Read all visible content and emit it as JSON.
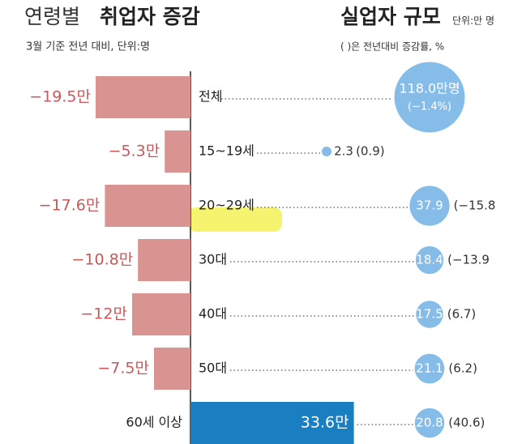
{
  "chart_data": {
    "type": "bar",
    "title_prefix": "연령별",
    "title": "취업자 증감",
    "subtitle": "3월 기준 전년 대비, 단위:명",
    "categories": [
      "전체",
      "15~19세",
      "20~29세",
      "30대",
      "40대",
      "50대",
      "60세 이상"
    ],
    "values": [
      -19.5,
      -5.3,
      -17.6,
      -10.8,
      -12,
      -7.5,
      33.6
    ],
    "value_labels": [
      "−19.5만",
      "−5.3만",
      "−17.6만",
      "−10.8만",
      "−12만",
      "−7.5만",
      "33.6만"
    ],
    "negative_color": "#d99391",
    "positive_color": "#1a7fc0",
    "bubble_chart": {
      "type": "bubble",
      "title": "실업자 규모",
      "unit": "단위:만 명",
      "note": "( )은 전년대비 증감률, %",
      "sizes": [
        118.0,
        2.3,
        37.9,
        18.4,
        17.5,
        21.1,
        20.8
      ],
      "size_labels": [
        "118.0만명",
        "2.3",
        "37.9",
        "18.4",
        "17.5",
        "21.1",
        "20.8"
      ],
      "changes": [
        -1.4,
        0.9,
        -15.8,
        -13.9,
        6.7,
        6.2,
        40.6
      ],
      "change_labels": [
        "(−1.4%)",
        "(0.9)",
        "(−15.8",
        "(−13.9",
        "(6.7)",
        "(6.2)",
        "(40.6)"
      ],
      "color": "#86bde8"
    }
  }
}
